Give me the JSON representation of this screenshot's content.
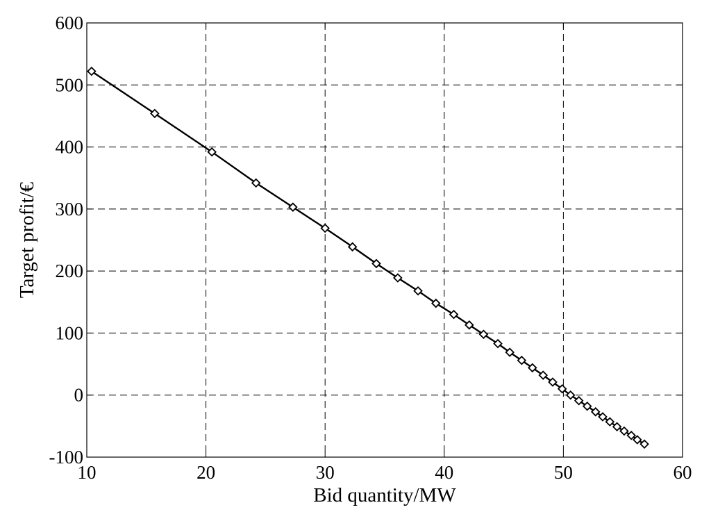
{
  "chart_data": {
    "type": "line",
    "title": "",
    "xlabel": "Bid quantity/MW",
    "ylabel": "Target profit/€",
    "xlim": [
      10,
      60
    ],
    "ylim": [
      -100,
      600
    ],
    "xticks": [
      "10",
      "20",
      "30",
      "40",
      "50",
      "60"
    ],
    "yticks": [
      "-100",
      "0",
      "100",
      "200",
      "300",
      "400",
      "500",
      "600"
    ],
    "grid": true,
    "grid_style": "dashed",
    "legend": "none",
    "series": [
      {
        "marker": "diamond",
        "color": "#000000",
        "x": [
          10.4,
          15.7,
          20.5,
          24.2,
          27.3,
          30.0,
          32.3,
          34.3,
          36.1,
          37.8,
          39.3,
          40.8,
          42.1,
          43.3,
          44.5,
          45.5,
          46.5,
          47.4,
          48.3,
          49.1,
          49.9,
          50.6,
          51.3,
          52.0,
          52.7,
          53.3,
          53.9,
          54.5,
          55.1,
          55.7,
          56.2,
          56.8
        ],
        "y": [
          522,
          454,
          392,
          342,
          303,
          269,
          239,
          212,
          189,
          168,
          148,
          130,
          113,
          98,
          83,
          69,
          56,
          44,
          32,
          21,
          10,
          0,
          -9,
          -18,
          -27,
          -35,
          -43,
          -51,
          -58,
          -65,
          -72,
          -79
        ]
      }
    ]
  }
}
